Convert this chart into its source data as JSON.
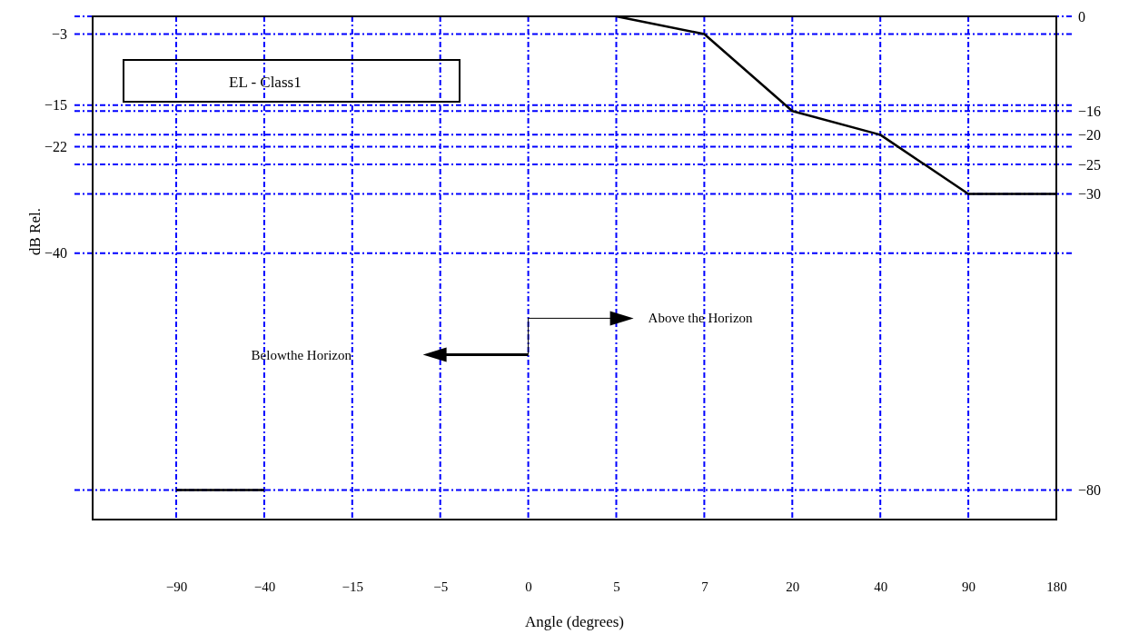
{
  "chart_data": {
    "type": "line",
    "title": "EL - Class1",
    "xlabel": "Angle (degrees)",
    "ylabel": "dB Rel.",
    "annotations": [
      "Belowthe Horizon",
      "Above the Horizon"
    ],
    "categories": [
      "−90",
      "−40",
      "−15",
      "−5",
      "0",
      "5",
      "7",
      "20",
      "40",
      "90",
      "180"
    ],
    "series": [
      {
        "color": "#000000",
        "values": [
          null,
          null,
          null,
          null,
          null,
          0,
          -3,
          -16,
          -20,
          -30,
          -30
        ]
      },
      {
        "color": "#000000",
        "values": [
          -80,
          -80,
          null,
          null,
          null,
          null,
          null,
          null,
          null,
          null,
          null
        ]
      }
    ],
    "ylim": [
      -85,
      0
    ],
    "yticks": [
      {
        "value": -3,
        "label": "−3"
      },
      {
        "value": -15,
        "label": "−15"
      },
      {
        "value": -22,
        "label": "−22"
      },
      {
        "value": -40,
        "label": "−40"
      }
    ],
    "y2lim": [
      -85,
      0
    ],
    "y2ticks": [
      0,
      {
        "value": -16,
        "label": "−16"
      },
      {
        "value": -20,
        "label": "−20"
      },
      {
        "value": -25,
        "label": "−25"
      },
      {
        "value": -30,
        "label": "−30"
      },
      {
        "value": -80,
        "label": "−80"
      }
    ],
    "grid": true,
    "marker": "none",
    "line_style": "solid"
  }
}
